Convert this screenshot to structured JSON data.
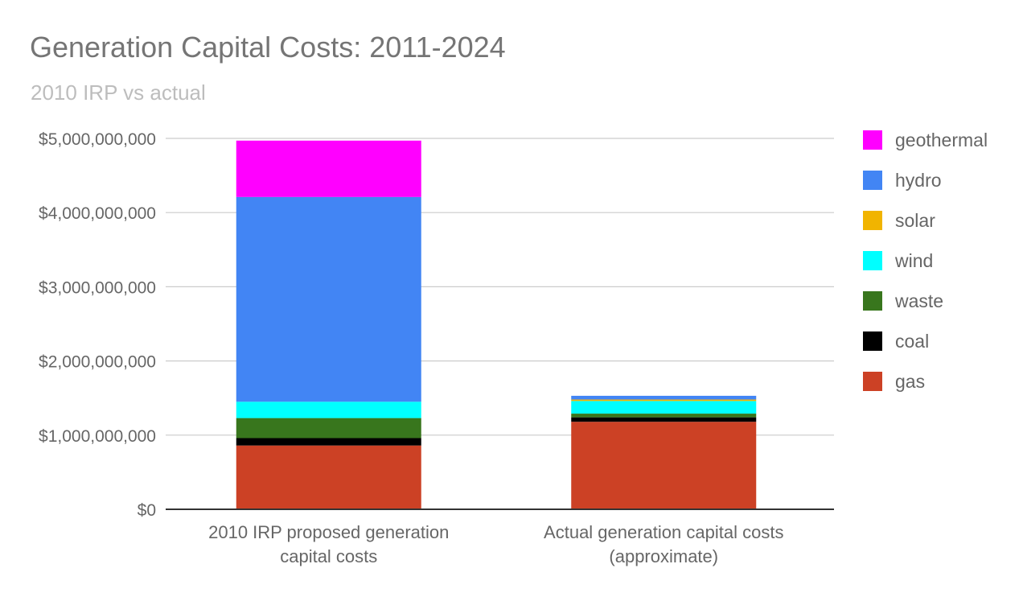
{
  "chart_data": {
    "type": "bar",
    "stacked": true,
    "title": "Generation Capital Costs: 2011-2024",
    "subtitle": "2010 IRP vs actual",
    "xlabel": "",
    "ylabel": "",
    "ylim": [
      0,
      5000000000
    ],
    "grid": true,
    "legend_position": "right",
    "y_ticks": [
      {
        "value": 0,
        "label": "$0"
      },
      {
        "value": 1000000000,
        "label": "$1,000,000,000"
      },
      {
        "value": 2000000000,
        "label": "$2,000,000,000"
      },
      {
        "value": 3000000000,
        "label": "$3,000,000,000"
      },
      {
        "value": 4000000000,
        "label": "$4,000,000,000"
      },
      {
        "value": 5000000000,
        "label": "$5,000,000,000"
      }
    ],
    "categories": [
      [
        "2010 IRP proposed generation",
        "capital costs"
      ],
      [
        "Actual generation capital costs",
        "(approximate)"
      ]
    ],
    "series": [
      {
        "name": "gas",
        "color": "#cc4125",
        "values": [
          860000000,
          1180000000
        ]
      },
      {
        "name": "coal",
        "color": "#000000",
        "values": [
          100000000,
          60000000
        ]
      },
      {
        "name": "waste",
        "color": "#38761d",
        "values": [
          270000000,
          50000000
        ]
      },
      {
        "name": "wind",
        "color": "#00ffff",
        "values": [
          220000000,
          170000000
        ]
      },
      {
        "name": "solar",
        "color": "#f1b400",
        "values": [
          0,
          20000000
        ]
      },
      {
        "name": "hydro",
        "color": "#4285f4",
        "values": [
          2760000000,
          50000000
        ]
      },
      {
        "name": "geothermal",
        "color": "#ff00ff",
        "values": [
          760000000,
          0
        ]
      }
    ]
  }
}
